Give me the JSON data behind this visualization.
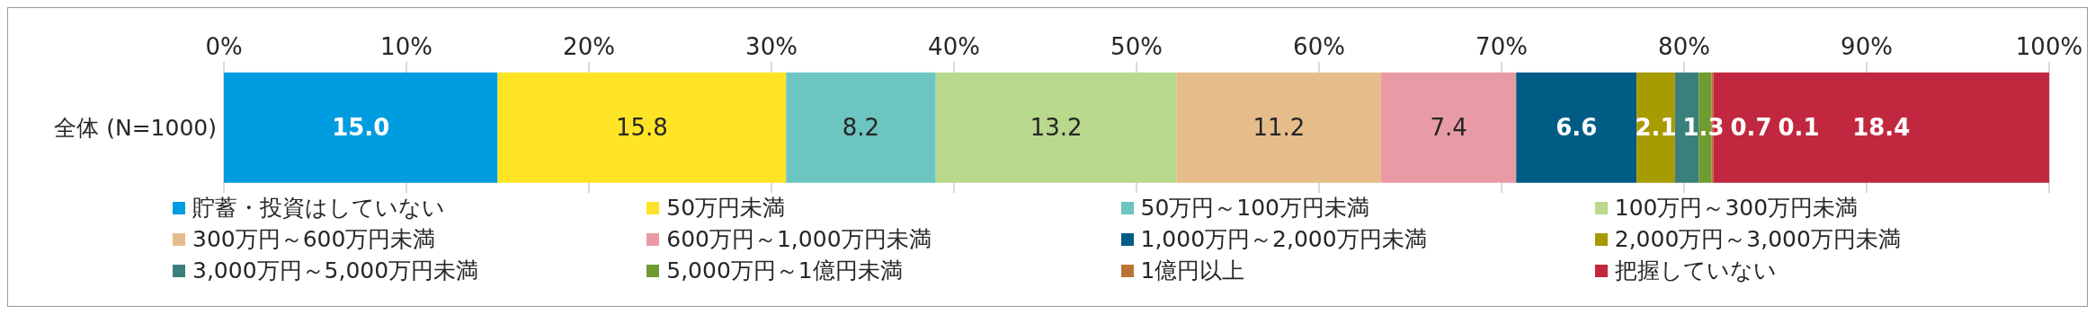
{
  "chart_data": {
    "type": "bar",
    "orientation": "horizontal",
    "stacked": true,
    "categories": [
      "全体 (N=1000)"
    ],
    "series": [
      {
        "name": "貯蓄・投資はしていない",
        "color": "#009ce0",
        "values": [
          15.0
        ],
        "value_labels": [
          "15.0"
        ]
      },
      {
        "name": "50万円未満",
        "color": "#ffe426",
        "values": [
          15.8
        ],
        "value_labels": [
          "15.8"
        ]
      },
      {
        "name": "50万円～100万円未満",
        "color": "#6cc5c0",
        "values": [
          8.2
        ],
        "value_labels": [
          "8.2"
        ]
      },
      {
        "name": "100万円～300万円未満",
        "color": "#b8d88b",
        "values": [
          13.2
        ],
        "value_labels": [
          "13.2"
        ]
      },
      {
        "name": "300万円～600万円未満",
        "color": "#e6bd8a",
        "values": [
          11.2
        ],
        "value_labels": [
          "11.2"
        ]
      },
      {
        "name": "600万円～1,000万円未満",
        "color": "#e99ba5",
        "values": [
          7.4
        ],
        "value_labels": [
          "7.4"
        ]
      },
      {
        "name": "1,000万円～2,000万円未満",
        "color": "#005c85",
        "values": [
          6.6
        ],
        "value_labels": [
          "6.6"
        ]
      },
      {
        "name": "2,000万円～3,000万円未満",
        "color": "#a69b00",
        "values": [
          2.1
        ],
        "value_labels": [
          "2.1"
        ]
      },
      {
        "name": "3,000万円～5,000万円未満",
        "color": "#3b7f7c",
        "values": [
          1.3
        ],
        "value_labels": [
          "1.3"
        ]
      },
      {
        "name": "5,000万円～1億円未満",
        "color": "#6f9b30",
        "values": [
          0.7
        ],
        "value_labels": [
          "0.7"
        ]
      },
      {
        "name": "1億円以上",
        "color": "#b97433",
        "values": [
          0.1
        ],
        "value_labels": [
          "0.1"
        ]
      },
      {
        "name": "把握していない",
        "color": "#c1283f",
        "values": [
          18.4
        ],
        "value_labels": [
          "18.4"
        ]
      }
    ],
    "xlim": [
      0,
      100
    ],
    "xticks": [
      {
        "value": 0,
        "label": "0%"
      },
      {
        "value": 10,
        "label": "10%"
      },
      {
        "value": 20,
        "label": "20%"
      },
      {
        "value": 30,
        "label": "30%"
      },
      {
        "value": 40,
        "label": "40%"
      },
      {
        "value": 50,
        "label": "50%"
      },
      {
        "value": 60,
        "label": "60%"
      },
      {
        "value": 70,
        "label": "70%"
      },
      {
        "value": 80,
        "label": "80%"
      },
      {
        "value": 90,
        "label": "90%"
      },
      {
        "value": 100,
        "label": "100%"
      }
    ],
    "grid": "x",
    "legend": "bottom"
  }
}
